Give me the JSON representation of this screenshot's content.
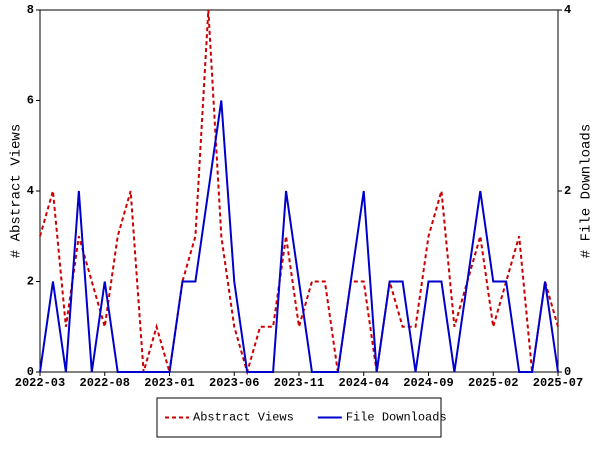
{
  "chart_data": {
    "type": "line",
    "categories": [
      "2022-03",
      null,
      null,
      null,
      null,
      "2022-08",
      null,
      null,
      null,
      null,
      "2023-01",
      null,
      null,
      null,
      null,
      "2023-06",
      null,
      null,
      null,
      null,
      "2023-11",
      null,
      null,
      null,
      null,
      "2024-04",
      null,
      null,
      null,
      null,
      "2024-09",
      null,
      null,
      null,
      null,
      "2025-02",
      null,
      null,
      null,
      null,
      "2025-07"
    ],
    "y_label": "# Abstract Views",
    "y2_label": "# File Downloads",
    "ylim": [
      0,
      8
    ],
    "yticks": [
      0,
      2,
      4,
      6,
      8
    ],
    "y2lim": [
      0,
      4
    ],
    "y2ticks": [
      0,
      2,
      4
    ],
    "legend": "bottom",
    "series": [
      {
        "name": "Abstract Views",
        "color": "#cc0000",
        "dashed": true,
        "values": [
          3,
          4,
          1,
          3,
          2,
          1,
          3,
          4,
          0,
          1,
          0,
          2,
          3,
          8,
          3,
          1,
          0,
          1,
          1,
          3,
          1,
          2,
          2,
          0,
          2,
          2,
          0,
          2,
          1,
          1,
          3,
          4,
          1,
          2,
          3,
          1,
          2,
          3,
          0,
          2,
          1
        ]
      },
      {
        "name": "File Downloads",
        "color": "#0000cc",
        "axis": "y2",
        "values": [
          0,
          1,
          0,
          2,
          0,
          1,
          0,
          0,
          0,
          0,
          0,
          1,
          1,
          2,
          3,
          1,
          0,
          0,
          0,
          2,
          1,
          0,
          0,
          0,
          1,
          2,
          0,
          1,
          1,
          0,
          1,
          1,
          0,
          1,
          2,
          1,
          1,
          0,
          0,
          1,
          0
        ]
      }
    ]
  }
}
